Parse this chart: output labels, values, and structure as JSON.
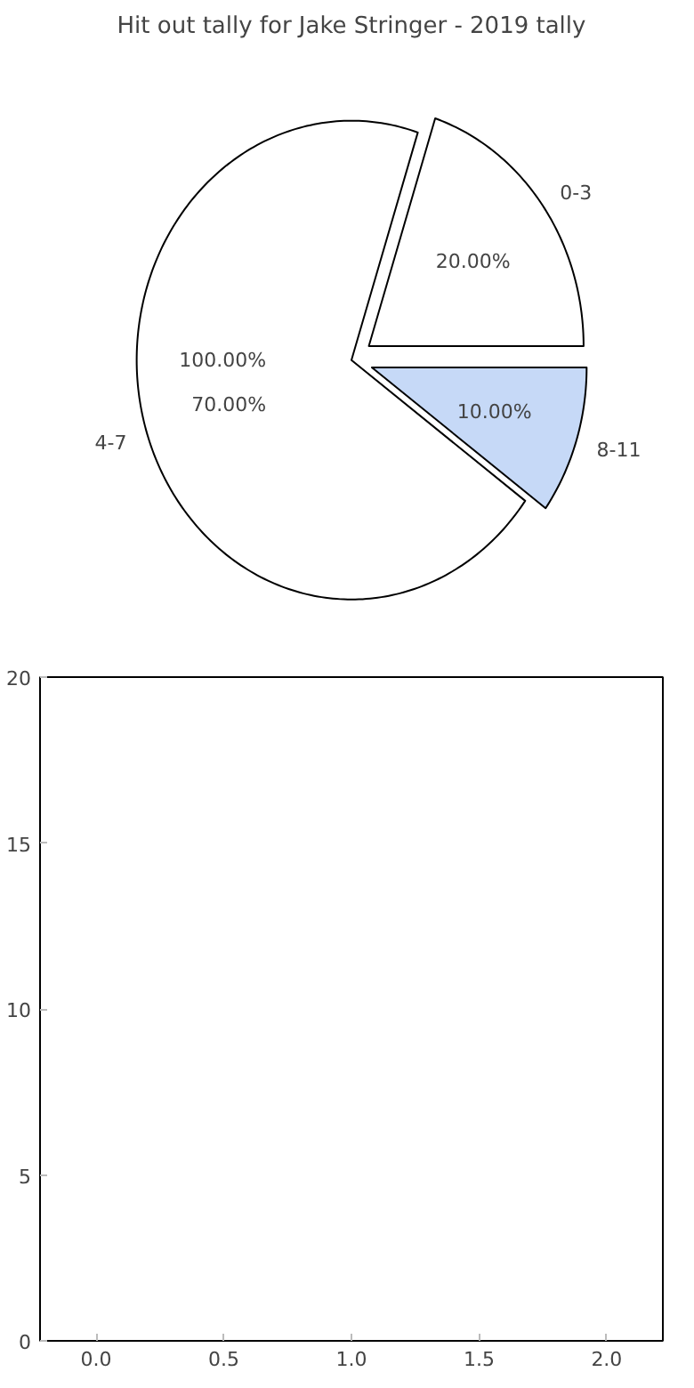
{
  "chart_data": [
    {
      "type": "pie",
      "title": "Hit out tally for Jake Stringer - 2019 tally",
      "categories": [
        "0-3",
        "4-7",
        "8-11"
      ],
      "values": [
        20,
        70,
        10
      ],
      "colors": [
        "#ffffff",
        "#ffffff",
        "#c6d9f7"
      ],
      "value_labels": [
        "20.00%",
        "70.00%",
        "10.00%"
      ],
      "annotations": [
        "100.00%"
      ]
    },
    {
      "type": "scatter",
      "xlim": [
        -0.22,
        2.22
      ],
      "ylim": [
        0,
        20
      ],
      "xticks": [
        {
          "value": 0,
          "label": "0.0"
        },
        {
          "value": 0.5,
          "label": "0.5"
        },
        {
          "value": 1,
          "label": "1.0"
        },
        {
          "value": 1.5,
          "label": "1.5"
        },
        {
          "value": 2,
          "label": "2.0"
        }
      ],
      "yticks": [
        0,
        5,
        10,
        15,
        20
      ],
      "grid": false
    }
  ]
}
